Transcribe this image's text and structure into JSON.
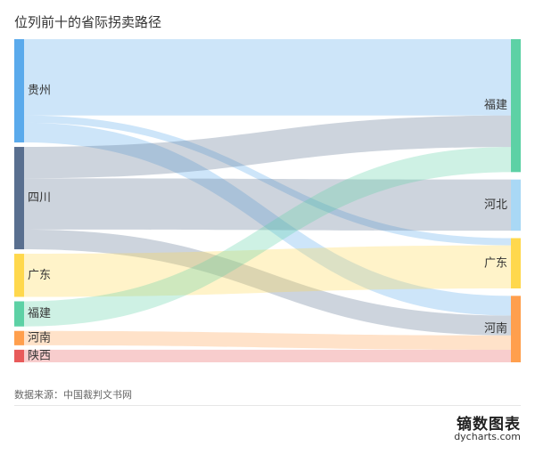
{
  "title": "位列前十的省际拐卖路径",
  "source": "数据来源：中国裁判文书网",
  "brand": {
    "name": "镝数图表",
    "url": "dycharts.com"
  },
  "chart_data": {
    "type": "sankey",
    "source_nodes": [
      {
        "name": "贵州",
        "color": "#5aaaec"
      },
      {
        "name": "四川",
        "color": "#596f8f"
      },
      {
        "name": "广东",
        "color": "#ffd84d"
      },
      {
        "name": "福建",
        "color": "#5dd1a5"
      },
      {
        "name": "河南",
        "color": "#ff9f4d"
      },
      {
        "name": "陕西",
        "color": "#e85a5a"
      }
    ],
    "target_nodes": [
      {
        "name": "福建",
        "color": "#5dd1a5"
      },
      {
        "name": "河北",
        "color": "#a9d8f5"
      },
      {
        "name": "广东",
        "color": "#ffd84d"
      },
      {
        "name": "河南",
        "color": "#ff9f4d"
      }
    ],
    "links": [
      {
        "source": "贵州",
        "target": "福建",
        "value": 85
      },
      {
        "source": "贵州",
        "target": "广东",
        "value": 8
      },
      {
        "source": "贵州",
        "target": "河南",
        "value": 22
      },
      {
        "source": "四川",
        "target": "福建",
        "value": 35
      },
      {
        "source": "四川",
        "target": "河北",
        "value": 57
      },
      {
        "source": "四川",
        "target": "河南",
        "value": 22
      },
      {
        "source": "广东",
        "target": "广东",
        "value": 48
      },
      {
        "source": "福建",
        "target": "福建",
        "value": 28
      },
      {
        "source": "河南",
        "target": "河南",
        "value": 16
      },
      {
        "source": "陕西",
        "target": "河南",
        "value": 14
      }
    ]
  }
}
